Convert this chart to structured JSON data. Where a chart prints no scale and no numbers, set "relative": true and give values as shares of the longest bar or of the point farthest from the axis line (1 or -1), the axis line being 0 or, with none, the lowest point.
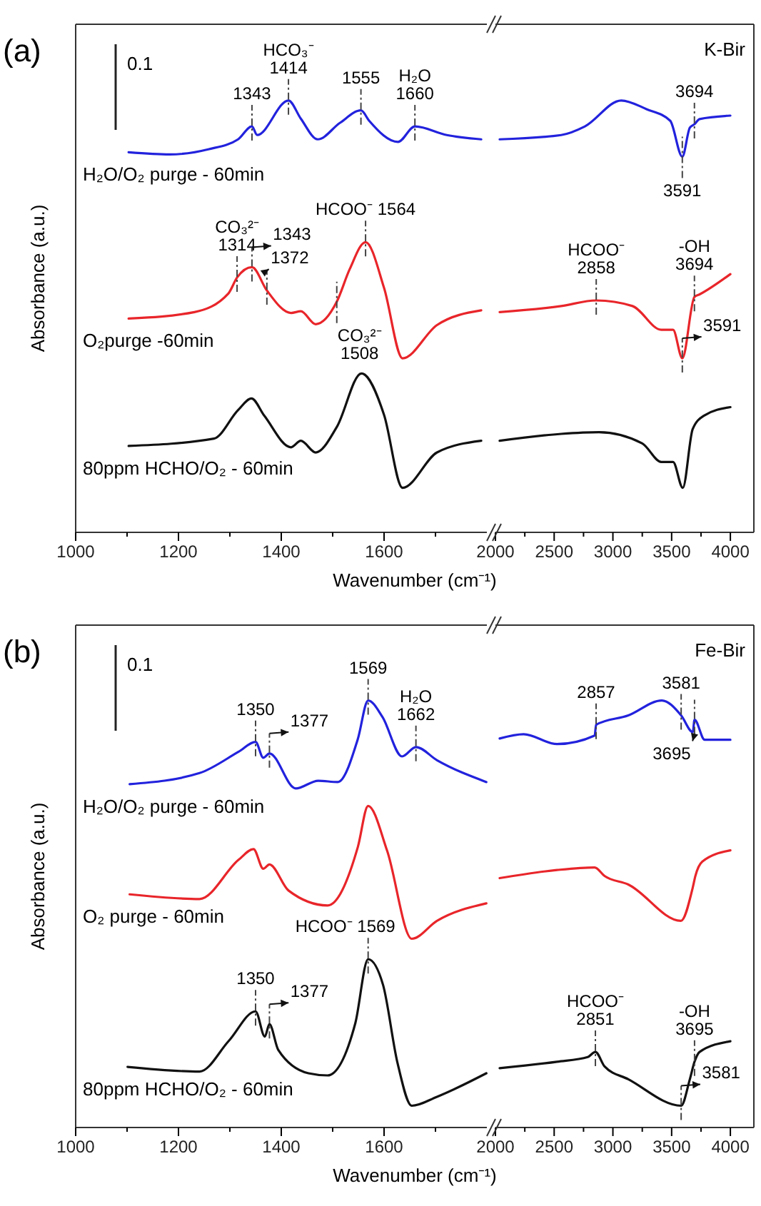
{
  "chart_data": [
    {
      "type": "line",
      "title": "(a)",
      "xlabel": "Wavenumber (cm⁻¹)",
      "ylabel": "Absorbance (a.u.)",
      "relative": true,
      "xlim": [
        1000,
        1800
      ],
      "xticks": [
        1000,
        {
          "value": 1100,
          "label": null
        },
        1200,
        {
          "value": 1300,
          "label": null
        },
        1400,
        {
          "value": 1500,
          "label": null
        },
        1600,
        {
          "value": 1700,
          "label": null
        }
      ],
      "series": [
        {
          "name": "H₂O/O₂ purge - 60min",
          "color": "#2222dd",
          "x": [
            1103,
            1183,
            1258,
            1316,
            1343,
            1353,
            1414,
            1438,
            1471,
            1514,
            1555,
            1571,
            1627,
            1660,
            1722,
            1789
          ],
          "values": [
            0.88,
            0.875,
            0.887,
            0.91,
            0.94,
            0.92,
            1.0,
            0.958,
            0.91,
            0.948,
            0.977,
            0.953,
            0.904,
            0.94,
            0.92,
            0.91
          ]
        },
        {
          "name": "O₂purge -60min",
          "color": "#e8252a",
          "x": [
            1103,
            1231,
            1297,
            1314,
            1343,
            1372,
            1419,
            1438,
            1467,
            1508,
            1533,
            1564,
            1600,
            1636,
            1703,
            1789
          ],
          "values": [
            0.495,
            0.51,
            0.553,
            0.59,
            0.614,
            0.56,
            0.508,
            0.512,
            0.482,
            0.534,
            0.609,
            0.672,
            0.566,
            0.403,
            0.48,
            0.514
          ]
        },
        {
          "name": "80ppm HCHO/O₂ - 60min",
          "color": "#111111",
          "x": [
            1103,
            1269,
            1316,
            1342,
            1367,
            1419,
            1438,
            1467,
            1508,
            1556,
            1600,
            1636,
            1703,
            1789
          ],
          "values": [
            0.2,
            0.217,
            0.283,
            0.31,
            0.27,
            0.197,
            0.212,
            0.185,
            0.244,
            0.368,
            0.272,
            0.103,
            0.185,
            0.212
          ]
        }
      ],
      "annotations": [
        "0.1",
        {
          "text": "1343",
          "x": 1343,
          "y": 0.94
        },
        {
          "text": "HCO₃⁻\n1414",
          "x": 1414,
          "y": 1.0
        },
        {
          "text": "1555",
          "x": 1555,
          "y": 0.977
        },
        {
          "text": "H₂O\n1660",
          "x": 1660,
          "y": 0.94
        },
        {
          "text": "CO₃²⁻\n1314",
          "x": 1314,
          "y": 0.59
        },
        {
          "text": "1343",
          "x": 1343,
          "y": 0.614
        },
        {
          "text": "1372",
          "x": 1372,
          "y": 0.56
        },
        {
          "text": "HCOO⁻ 1564",
          "x": 1564,
          "y": 0.672
        },
        {
          "text": "CO₃²⁻\n1508",
          "x": 1508,
          "y": 0.534
        }
      ]
    },
    {
      "type": "line",
      "relative": true,
      "xlim": [
        2000,
        4200
      ],
      "xticks": [
        2000,
        {
          "value": 2250,
          "label": null
        },
        2500,
        {
          "value": 2750,
          "label": null
        },
        3000,
        {
          "value": 3250,
          "label": null
        },
        3500,
        {
          "value": 3750,
          "label": null
        },
        4000
      ],
      "series": [
        {
          "color": "#2222dd",
          "x": [
            2036,
            2560,
            2762,
            3071,
            3286,
            3488,
            3591,
            3655,
            3694,
            3738,
            4000
          ],
          "values": [
            0.91,
            0.92,
            0.94,
            1.0,
            0.98,
            0.953,
            0.87,
            0.937,
            0.945,
            0.957,
            0.965
          ]
        },
        {
          "color": "#e8252a",
          "x": [
            2036,
            2560,
            2858,
            3167,
            3412,
            3512,
            3591,
            3694,
            3738,
            4000
          ],
          "values": [
            0.51,
            0.524,
            0.537,
            0.524,
            0.469,
            0.469,
            0.403,
            0.545,
            0.551,
            0.598
          ]
        },
        {
          "color": "#111111",
          "x": [
            2036,
            2560,
            2881,
            3250,
            3412,
            3512,
            3595,
            3679,
            3774,
            4000
          ],
          "values": [
            0.212,
            0.228,
            0.232,
            0.206,
            0.163,
            0.163,
            0.103,
            0.239,
            0.27,
            0.29
          ]
        }
      ],
      "annotations": [
        "K-Bir",
        {
          "text": "3591",
          "x": 3591,
          "y": 0.87
        },
        {
          "text": "3694",
          "x": 3694,
          "y": 0.945
        },
        {
          "text": "HCOO⁻\n2858",
          "x": 2858,
          "y": 0.537
        },
        {
          "text": "3591",
          "x": 3591,
          "y": 0.403
        },
        {
          "text": "-OH\n3694",
          "x": 3694,
          "y": 0.545
        }
      ]
    },
    {
      "type": "line",
      "title": "(b)",
      "xlabel": "Wavenumber (cm⁻¹)",
      "ylabel": "Absorbance (a.u.)",
      "relative": true,
      "xlim": [
        1000,
        1800
      ],
      "xticks": [
        1000,
        {
          "value": 1100,
          "label": null
        },
        1200,
        {
          "value": 1300,
          "label": null
        },
        1400,
        {
          "value": 1500,
          "label": null
        },
        1600,
        {
          "value": 1700,
          "label": null
        }
      ],
      "series": [
        {
          "name": "H₂O/O₂ purge - 60min",
          "color": "#2222dd",
          "x": [
            1105,
            1241,
            1317,
            1350,
            1365,
            1377,
            1428,
            1472,
            1510,
            1549,
            1569,
            1597,
            1635,
            1662,
            1703,
            1799
          ],
          "values": [
            0.804,
            0.83,
            0.88,
            0.903,
            0.866,
            0.876,
            0.794,
            0.812,
            0.809,
            0.91,
            1.0,
            0.961,
            0.869,
            0.891,
            0.86,
            0.809
          ]
        },
        {
          "name": "O₂ purge - 60min",
          "color": "#e8252a",
          "x": [
            1105,
            1241,
            1317,
            1346,
            1365,
            1377,
            1414,
            1490,
            1549,
            1569,
            1606,
            1654,
            1703,
            1799
          ],
          "values": [
            0.546,
            0.535,
            0.627,
            0.652,
            0.606,
            0.616,
            0.555,
            0.52,
            0.657,
            0.753,
            0.648,
            0.442,
            0.484,
            0.525
          ]
        },
        {
          "name": "80ppm HCHO/O₂ - 60min",
          "color": "#111111",
          "x": [
            1101,
            1241,
            1298,
            1350,
            1368,
            1377,
            1394,
            1453,
            1490,
            1544,
            1569,
            1598,
            1626,
            1654,
            1703,
            1799
          ],
          "values": [
            0.142,
            0.131,
            0.203,
            0.272,
            0.213,
            0.242,
            0.182,
            0.127,
            0.122,
            0.244,
            0.394,
            0.334,
            0.152,
            0.051,
            0.072,
            0.127
          ]
        }
      ],
      "annotations": [
        "0.1",
        {
          "text": "1350",
          "x": 1350,
          "y": 0.903
        },
        {
          "text": "1377",
          "x": 1377,
          "y": 0.876
        },
        {
          "text": "1569",
          "x": 1569,
          "y": 1.0
        },
        {
          "text": "H₂O\n1662",
          "x": 1662,
          "y": 0.891
        },
        {
          "text": "1350",
          "x": 1350,
          "y": 0.272
        },
        {
          "text": "1377",
          "x": 1377,
          "y": 0.242
        },
        {
          "text": "HCOO⁻ 1569",
          "x": 1569,
          "y": 0.394
        }
      ]
    },
    {
      "type": "line",
      "relative": true,
      "xlim": [
        2000,
        4200
      ],
      "xticks": [
        2000,
        {
          "value": 2250,
          "label": null
        },
        2500,
        {
          "value": 2750,
          "label": null
        },
        3000,
        {
          "value": 3250,
          "label": null
        },
        3500,
        {
          "value": 3750,
          "label": null
        },
        4000
      ],
      "series": [
        {
          "color": "#2222dd",
          "x": [
            2036,
            2240,
            2524,
            2845,
            2857,
            3131,
            3417,
            3581,
            3680,
            3695,
            3781,
            4000
          ],
          "values": [
            0.911,
            0.921,
            0.898,
            0.918,
            0.943,
            0.965,
            1.0,
            0.965,
            0.926,
            0.955,
            0.908,
            0.908
          ]
        },
        {
          "color": "#e8252a",
          "x": [
            2036,
            2524,
            2845,
            2929,
            3131,
            3579,
            3679,
            3702,
            3762,
            4000
          ],
          "values": [
            0.584,
            0.603,
            0.609,
            0.589,
            0.569,
            0.484,
            0.561,
            0.589,
            0.623,
            0.649
          ]
        },
        {
          "color": "#111111",
          "x": [
            2036,
            2524,
            2786,
            2851,
            2929,
            3131,
            3581,
            3655,
            3695,
            3738,
            4000
          ],
          "values": [
            0.139,
            0.154,
            0.165,
            0.177,
            0.143,
            0.113,
            0.051,
            0.113,
            0.154,
            0.177,
            0.202
          ]
        }
      ],
      "annotations": [
        "Fe-Bir",
        {
          "text": "2857",
          "x": 2857,
          "y": 0.943
        },
        {
          "text": "3581",
          "x": 3581,
          "y": 0.965
        },
        {
          "text": "3695",
          "x": 3695,
          "y": 0.955
        },
        {
          "text": "HCOO⁻\n2851",
          "x": 2851,
          "y": 0.177
        },
        {
          "text": "3581",
          "x": 3581,
          "y": 0.051
        },
        {
          "text": "-OH\n3695",
          "x": 3695,
          "y": 0.154
        }
      ]
    }
  ]
}
